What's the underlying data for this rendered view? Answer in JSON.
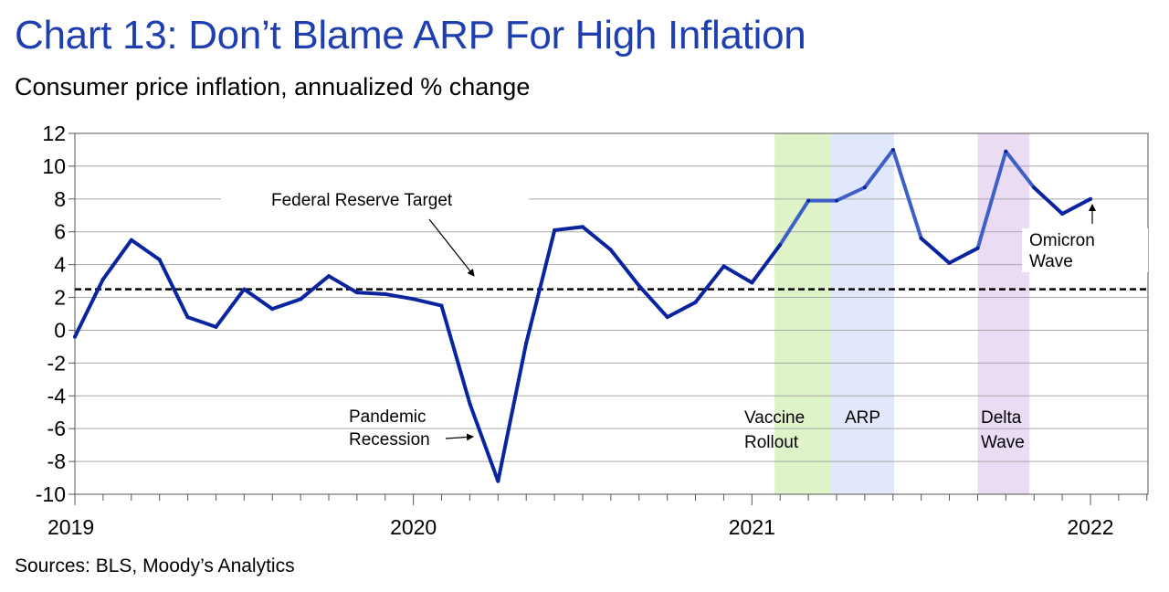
{
  "title": "Chart 13: Don’t Blame ARP For High Inflation",
  "subtitle": "Consumer price inflation, annualized % change",
  "source": "Sources: BLS, Moody’s Analytics",
  "colors": {
    "line": "#0a24a0",
    "line_highlight": "#3f5fc8",
    "vaccine_band": "#dff3c8",
    "arp_band": "#e2e8fb",
    "delta_band": "#e9dcf3",
    "target_line": "#000000"
  },
  "chart_data": {
    "type": "line",
    "title": "Chart 13: Don’t Blame ARP For High Inflation",
    "ylabel": "Consumer price inflation, annualized % change",
    "ylim": [
      -10,
      12
    ],
    "yticks": [
      12,
      10,
      8,
      6,
      4,
      2,
      0,
      -2,
      -4,
      -6,
      -8,
      -10
    ],
    "xlim": [
      2019.0,
      2022.17
    ],
    "xticks": [
      {
        "x": 2019.0,
        "label": "2019"
      },
      {
        "x": 2020.0,
        "label": "2020"
      },
      {
        "x": 2021.0,
        "label": "2021"
      },
      {
        "x": 2022.0,
        "label": "2022"
      }
    ],
    "grid": true,
    "series": [
      {
        "name": "Consumer price inflation",
        "x": [
          2019.0,
          2019.083,
          2019.167,
          2019.25,
          2019.333,
          2019.417,
          2019.5,
          2019.583,
          2019.667,
          2019.75,
          2019.833,
          2019.917,
          2020.0,
          2020.083,
          2020.167,
          2020.25,
          2020.333,
          2020.417,
          2020.5,
          2020.583,
          2020.667,
          2020.75,
          2020.833,
          2020.917,
          2021.0,
          2021.083,
          2021.167,
          2021.25,
          2021.333,
          2021.417,
          2021.5,
          2021.583,
          2021.667,
          2021.75,
          2021.833,
          2021.917,
          2022.0
        ],
        "values": [
          -0.4,
          3.1,
          5.5,
          4.3,
          0.8,
          0.2,
          2.5,
          1.3,
          1.9,
          3.3,
          2.3,
          2.2,
          1.9,
          1.5,
          -4.5,
          -9.2,
          -0.8,
          6.1,
          6.3,
          4.9,
          2.7,
          0.8,
          1.7,
          3.9,
          2.9,
          5.2,
          7.9,
          7.9,
          8.7,
          11.0,
          5.6,
          4.1,
          5.0,
          10.9,
          8.7,
          7.1,
          8.0
        ]
      }
    ],
    "reference_lines": [
      {
        "name": "Federal Reserve Target",
        "y": 2.5
      }
    ],
    "shaded_periods": [
      {
        "name": "Vaccine Rollout",
        "start": 2021.067,
        "end": 2021.233
      },
      {
        "name": "ARP",
        "start": 2021.233,
        "end": 2021.42
      },
      {
        "name": "Delta Wave",
        "start": 2021.667,
        "end": 2021.82
      }
    ],
    "annotations": {
      "fed_target": "Federal Reserve Target",
      "pandemic_line1": "Pandemic",
      "pandemic_line2": "Recession",
      "vaccine_line1": "Vaccine",
      "vaccine_line2": "Rollout",
      "arp": "ARP",
      "delta_line1": "Delta",
      "delta_line2": "Wave",
      "omicron_line1": "Omicron",
      "omicron_line2": "Wave"
    }
  }
}
